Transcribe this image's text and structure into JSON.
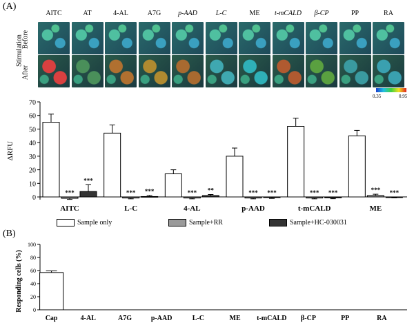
{
  "panel_a_label": "(A)",
  "panel_b_label": "(B)",
  "images": {
    "columns": [
      "AITC",
      "AT",
      "4-AL",
      "A7G",
      "p-AAD",
      "L-C",
      "ME",
      "t-mCALD",
      "β-CP",
      "PP",
      "RA"
    ],
    "italic_prefix": [
      false,
      false,
      false,
      false,
      true,
      true,
      false,
      true,
      true,
      false,
      false
    ],
    "rows": [
      "Before",
      "After"
    ],
    "group_label": "Stimulation",
    "scale_min": "0.35",
    "scale_max": "0.95",
    "after_colors": [
      "#d94040",
      "#4a8f5a",
      "#b07030",
      "#b08a30",
      "#a86a30",
      "#3fa8b0",
      "#2fb0b8",
      "#b05a30",
      "#5aa040",
      "#3a9aa0",
      "#3aa0b0"
    ]
  },
  "chart_data": [
    {
      "type": "bar",
      "ylabel": "ΔRFU",
      "ylim": [
        -2,
        70
      ],
      "yticks": [
        0,
        10,
        20,
        30,
        40,
        50,
        60,
        70
      ],
      "categories": [
        "AITC",
        "L-C",
        "4-AL",
        "p-AAD",
        "t-mCALD",
        "ME"
      ],
      "series": [
        {
          "name": "Sample only",
          "values": [
            55,
            47,
            17,
            30,
            52,
            45
          ],
          "errors": [
            6,
            6,
            3,
            6,
            6,
            4
          ],
          "fill": "#ffffff"
        },
        {
          "name": "Sample+RR",
          "values": [
            -1,
            -0.8,
            -0.8,
            -0.8,
            -0.8,
            1
          ],
          "errors": [
            0.8,
            0.6,
            0.6,
            0.6,
            0.6,
            1
          ],
          "fill": "#9a9a9a"
        },
        {
          "name": "Sample+HC-030031",
          "values": [
            4,
            0.3,
            1,
            -0.5,
            -0.7,
            -0.2
          ],
          "errors": [
            5,
            0.8,
            0.8,
            0.6,
            0.6,
            0.5
          ],
          "fill": "#333333"
        }
      ],
      "significance": [
        [
          "",
          "***",
          "***"
        ],
        [
          "",
          "***",
          "***"
        ],
        [
          "",
          "***",
          "**"
        ],
        [
          "",
          "***",
          "***"
        ],
        [
          "",
          "***",
          "***"
        ],
        [
          "",
          "***",
          "***"
        ]
      ]
    },
    {
      "type": "bar",
      "ylabel": "Responding cells (%)",
      "ylim": [
        0,
        100
      ],
      "yticks": [
        0,
        20,
        40,
        60,
        80,
        100
      ],
      "categories": [
        "Cap",
        "4-AL",
        "A7G",
        "p-AAD",
        "L-C",
        "ME",
        "t-mCALD",
        "β-CP",
        "PP",
        "RA"
      ],
      "values": [
        57,
        0,
        0,
        0,
        0,
        0,
        0,
        0,
        0,
        0
      ],
      "errors": [
        2.5,
        0,
        0,
        0,
        0,
        0,
        0,
        0,
        0,
        0
      ]
    }
  ]
}
